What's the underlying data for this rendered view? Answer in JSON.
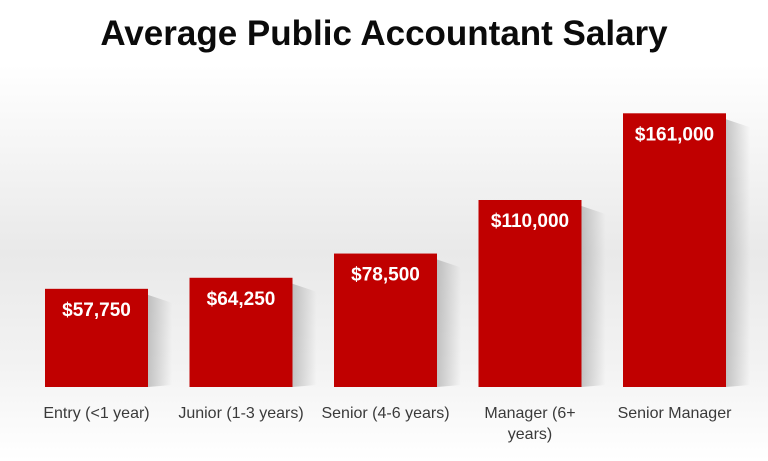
{
  "chart_data": {
    "type": "bar",
    "title": "Average Public Accountant Salary",
    "categories": [
      "Entry (<1 year)",
      "Junior (1-3 years)",
      "Senior (4-6 years)",
      "Manager (6+ years)",
      "Senior Manager"
    ],
    "category_lines": [
      [
        "Entry (<1 year)"
      ],
      [
        "Junior (1-3 years)"
      ],
      [
        "Senior (4-6 years)"
      ],
      [
        "Manager (6+",
        "years)"
      ],
      [
        "Senior Manager"
      ]
    ],
    "values": [
      57750,
      64250,
      78500,
      110000,
      161000
    ],
    "data_labels": [
      "$57,750",
      "$64,250",
      "$78,500",
      "$110,000",
      "$161,000"
    ],
    "ylim": [
      0,
      170000
    ],
    "xlabel": "",
    "ylabel": "",
    "grid": false,
    "bar_color": "#c00000",
    "data_label_color": "#ffffff",
    "tick_label_color": "#3a3a3a"
  }
}
